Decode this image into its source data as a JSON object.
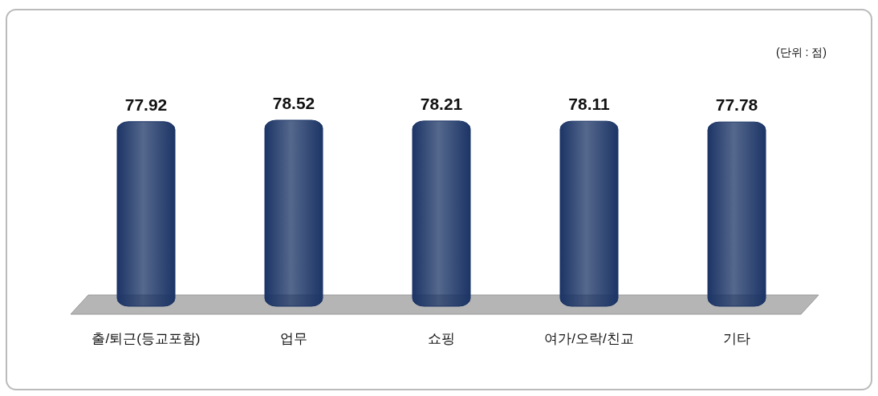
{
  "chart_data": {
    "type": "bar",
    "categories": [
      "출/퇴근(등교포함)",
      "업무",
      "쇼핑",
      "여가/오락/친교",
      "기타"
    ],
    "values": [
      77.92,
      78.52,
      78.21,
      78.11,
      77.78
    ],
    "color": "#1c3566",
    "data_labels": true,
    "annotations": [
      "(단위 : 점)"
    ]
  }
}
